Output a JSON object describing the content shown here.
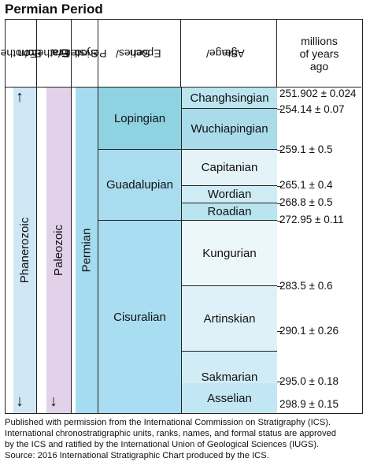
{
  "title": "Permian Period",
  "headers": {
    "eonothem": [
      "Eonothem/",
      "Eon"
    ],
    "erathem": [
      "Erathem/",
      "Era"
    ],
    "system": [
      "System/",
      "Period"
    ],
    "series": [
      "Series/",
      "Epoch"
    ],
    "stage": [
      "Stage/",
      "Age"
    ],
    "ages": [
      "millions",
      "of years",
      "ago"
    ]
  },
  "eon": "Phanerozoic",
  "era": "Paleozoic",
  "period": "Permian",
  "series": [
    "Lopingian",
    "Guadalupian",
    "Cisuralian"
  ],
  "stages": [
    "Changhsingian",
    "Wuchiapingian",
    "Capitanian",
    "Wordian",
    "Roadian",
    "Kungurian",
    "Artinskian",
    "Sakmarian",
    "Asselian"
  ],
  "ages": [
    "251.902 ± 0.024",
    "254.14 ± 0.07",
    "259.1 ± 0.5",
    "265.1 ± 0.4",
    "268.8 ± 0.5",
    "272.95 ± 0.11",
    "283.5 ± 0.6",
    "290.1 ± 0.26",
    "295.0 ± 0.18",
    "298.9 ± 0.15"
  ],
  "colors": {
    "eon": "#cfe6f5",
    "era": "#e1d2ea",
    "period": "#a6dcf0",
    "lopingian": "#8fd3e3",
    "guadalupian": "#a9dcee",
    "cisuralian": "#a8ddf2",
    "changhsingian": "#bbe4ee",
    "wuchiapingian": "#a9dbea",
    "capitanian": "#e3f3f7",
    "wordian": "#cfecf4",
    "roadian": "#b9e5f0",
    "kungurian": "#ecf7fb",
    "artinskian": "#dff1f8",
    "sakmarian": "#d2ecf6",
    "asselian": "#c2e6f4"
  },
  "footer": {
    "line1": "Published with permission from the International Commission on Stratigraphy (ICS).",
    "line2": "International chronostratigraphic units, ranks, names, and formal status are approved",
    "line3": "by the ICS and ratified by the International Union of Geological Sciences (IUGS).",
    "line4": "Source: 2016 International Stratigraphic Chart produced by the ICS."
  }
}
